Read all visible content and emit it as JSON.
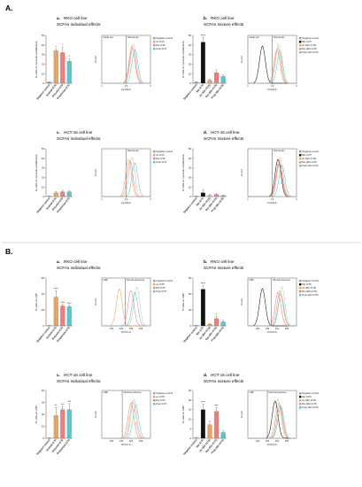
{
  "section_a": {
    "label": "A."
  },
  "section_b": {
    "label": "B."
  },
  "colors": {
    "negative": "#9e9e9e",
    "black": "#111111",
    "ac": "#f0a05a",
    "but": "#ee7f7f",
    "prop": "#5cc6c6"
  },
  "panels": [
    {
      "letter": "a.",
      "cell_line": "RKO cell line",
      "effects": "SCFAs individual effects",
      "ylabel": "% cells w/ cytosolic acidification"
    },
    {
      "letter": "b.",
      "cell_line": "RKO cell line",
      "effects": "SCFAs mixture effects",
      "ylabel": "% cells w/ cytosolic acidification"
    },
    {
      "letter": "c.",
      "cell_line": "HCT-15 cell line",
      "effects": "SCFAs individual effects",
      "ylabel": "% cells w/ cytosolic acidification"
    },
    {
      "letter": "d.",
      "cell_line": "HCT-15 cell line",
      "effects": "SCFAs mixture effects",
      "ylabel": "% cells w/ cytosolic acidification"
    },
    {
      "letter": "a.",
      "cell_line": "RKO cell line",
      "effects": "SCFAs individual effects",
      "ylabel": "% cells w/ LMP"
    },
    {
      "letter": "b.",
      "cell_line": "RKO cell line",
      "effects": "SCFAs mixture effects",
      "ylabel": "% cells w/ LMP"
    },
    {
      "letter": "c.",
      "cell_line": "HCT-15 cell line",
      "effects": "SCFAs individual effects",
      "ylabel": "% cells w/ LMP"
    },
    {
      "letter": "d.",
      "cell_line": "HCT-15 cell line",
      "effects": "SCFAs mixture effects",
      "ylabel": "% cells w/ LMP"
    }
  ],
  "chart_data": [
    {
      "type": "bar",
      "panel": "A a",
      "ylabel": "% cells w/ cytosolic acidification",
      "ylim": [
        0,
        50
      ],
      "yticks": [
        0,
        10,
        20,
        30,
        40,
        50
      ],
      "categories": [
        "Negative control",
        "Acetate IC75",
        "Butyrate IC75",
        "Propionate IC75"
      ],
      "values": [
        1,
        34,
        32,
        23
      ],
      "errors": [
        0.5,
        2,
        6,
        3
      ],
      "significance": [
        "",
        "*",
        "*",
        "*"
      ]
    },
    {
      "type": "line",
      "panel": "A a histogram",
      "xlabel": "FL1/FL2",
      "ylabel": "Count",
      "xlim": [
        1,
        2
      ],
      "xticks": [
        1,
        1.5,
        2
      ],
      "regions": [
        "Acidic pH",
        "Normal pH"
      ],
      "gate": 1.5,
      "legend": [
        "Negative control",
        "Ac IC75",
        "But IC75",
        "Prop IC75"
      ],
      "peaks": [
        1.65,
        1.62,
        1.63,
        1.68
      ]
    },
    {
      "type": "bar",
      "panel": "A b",
      "ylabel": "% cells w/ cytosolic acidification",
      "ylim": [
        0,
        50
      ],
      "yticks": [
        0,
        10,
        20,
        30,
        40,
        50
      ],
      "categories": [
        "Negative control",
        "Mix IC75",
        "Ac (Mix IC75)",
        "But (Mix IC75)",
        "Prop (Mix IC75)"
      ],
      "values": [
        1,
        43,
        3,
        11,
        7
      ],
      "errors": [
        0.5,
        5,
        1,
        3,
        2
      ],
      "significance": [
        "",
        "****",
        "",
        "",
        ""
      ]
    },
    {
      "type": "line",
      "panel": "A b histogram",
      "xlabel": "FL1/FL2",
      "ylabel": "Count",
      "xlim": [
        1,
        2
      ],
      "xticks": [
        1,
        1.5,
        2
      ],
      "regions": [
        "Acidic pH",
        "Normal pH"
      ],
      "gate": 1.5,
      "legend": [
        "Negative control",
        "Mix IC75",
        "Ac (Mix IC75)",
        "But (Mix IC75)",
        "Prop (Mix IC75)"
      ],
      "peaks": [
        1.63,
        1.3,
        1.62,
        1.6,
        1.66
      ]
    },
    {
      "type": "bar",
      "panel": "A c",
      "ylabel": "% cells w/ cytosolic acidification",
      "ylim": [
        0,
        50
      ],
      "yticks": [
        0,
        10,
        20,
        30,
        40,
        50
      ],
      "categories": [
        "Negative control",
        "Acetate IC75",
        "Butyrate IC75",
        "Propionate IC75"
      ],
      "values": [
        0,
        4,
        5,
        5
      ],
      "errors": [
        0.5,
        1,
        1.5,
        1
      ],
      "significance": [
        "",
        "",
        "",
        ""
      ]
    },
    {
      "type": "line",
      "panel": "A c histogram",
      "xlabel": "FL1/FL2",
      "ylabel": "Count",
      "xlim": [
        1,
        2
      ],
      "xticks": [
        1,
        1.5,
        2
      ],
      "regions": [
        "Normal pH"
      ],
      "gate": 1.5,
      "legend": [
        "Negative control",
        "Ac IC75",
        "But IC75",
        "Prop IC75"
      ],
      "peaks": [
        1.62,
        1.55,
        1.58,
        1.68
      ]
    },
    {
      "type": "bar",
      "panel": "A d",
      "ylabel": "% cells w/ cytosolic acidification",
      "ylim": [
        0,
        50
      ],
      "yticks": [
        0,
        10,
        20,
        30,
        40,
        50
      ],
      "categories": [
        "Negative control",
        "Mix IC75",
        "Ac (Mix IC75)",
        "But (Mix IC75)",
        "Prop (Mix IC75)"
      ],
      "values": [
        0,
        4,
        1,
        2,
        1
      ],
      "errors": [
        0.5,
        3,
        1,
        1,
        0.5
      ],
      "significance": [
        "",
        "",
        "",
        "",
        ""
      ]
    },
    {
      "type": "line",
      "panel": "A d histogram",
      "xlabel": "FL1/FL2",
      "ylabel": "Count",
      "xlim": [
        1,
        2
      ],
      "xticks": [
        1,
        1.5,
        2
      ],
      "regions": [
        "Normal pH"
      ],
      "gate": 1.5,
      "legend": [
        "Negative control",
        "Mix IC75",
        "Ac (Mix IC75)",
        "But (Mix IC75)",
        "Prop (Mix IC75)"
      ],
      "peaks": [
        1.66,
        1.62,
        1.64,
        1.65,
        1.7
      ]
    },
    {
      "type": "bar",
      "panel": "B a",
      "ylabel": "% cells w/ LMP",
      "ylim": [
        0,
        60
      ],
      "yticks": [
        0,
        20,
        40,
        60
      ],
      "categories": [
        "Negative control",
        "Acetate IC75",
        "Butyrate IC75",
        "Propionate IC75"
      ],
      "values": [
        0,
        36,
        25,
        24
      ],
      "errors": [
        0.5,
        8,
        2,
        2
      ],
      "significance": [
        "",
        "****",
        "****",
        "****"
      ]
    },
    {
      "type": "line",
      "panel": "B a histogram",
      "xlabel": "PC5.5-A",
      "ylabel": "Count",
      "xlim": [
        1,
        6
      ],
      "xticks": [
        "10^2",
        "10^3",
        "10^4",
        "10^5"
      ],
      "regions": [
        "LMP",
        "Normal lysosome"
      ],
      "gate": 3.4,
      "legend": [
        "Negative control",
        "Ac IC75",
        "But IC75",
        "Prop IC75"
      ],
      "peaks": [
        4.6,
        2.8,
        4.0,
        4.4
      ]
    },
    {
      "type": "bar",
      "panel": "B b",
      "ylabel": "% cells w/ LMP",
      "ylim": [
        0,
        60
      ],
      "yticks": [
        0,
        20,
        40,
        60
      ],
      "categories": [
        "Negative control",
        "Mix IC75",
        "Ac (Mix IC75)",
        "But (Mix IC75)",
        "Prop (Mix IC75)"
      ],
      "values": [
        0,
        46,
        2,
        9,
        5
      ],
      "errors": [
        0.5,
        5,
        1,
        3,
        2
      ],
      "significance": [
        "",
        "****",
        "",
        "*",
        ""
      ]
    },
    {
      "type": "line",
      "panel": "B b histogram",
      "xlabel": "PC5.5-A",
      "ylabel": "Count",
      "xlim": [
        1,
        6
      ],
      "xticks": [
        "10^2",
        "10^3",
        "10^4",
        "10^5"
      ],
      "regions": [
        "LMP",
        "Normal lysosome"
      ],
      "gate": 3.4,
      "legend": [
        "Negative control",
        "Mix IC75",
        "Ac (Mix IC75)",
        "But (Mix IC75)",
        "Prop (Mix IC75)"
      ],
      "peaks": [
        4.5,
        2.5,
        4.3,
        4.1,
        4.4
      ]
    },
    {
      "type": "bar",
      "panel": "B c",
      "ylabel": "% cells w/ LMP",
      "ylim": [
        0,
        40
      ],
      "yticks": [
        0,
        10,
        20,
        30,
        40
      ],
      "categories": [
        "Negative control",
        "Acetate IC75",
        "Butyrate IC75",
        "Propionate IC75"
      ],
      "values": [
        0,
        19,
        24,
        24
      ],
      "errors": [
        0.5,
        7,
        3,
        5
      ],
      "significance": [
        "",
        "**",
        "***",
        "***"
      ]
    },
    {
      "type": "line",
      "panel": "B c histogram",
      "xlabel": "PC5.5-A",
      "ylabel": "Count",
      "xlim": [
        1,
        6
      ],
      "xticks": [
        "10^2",
        "10^3",
        "10^4",
        "10^5"
      ],
      "regions": [
        "LMP",
        "Normal lysosome"
      ],
      "gate": 3.1,
      "legend": [
        "Negative control",
        "Ac IC75",
        "But IC75",
        "Prop IC75"
      ],
      "peaks": [
        4.3,
        4.2,
        4.0,
        4.5
      ]
    },
    {
      "type": "bar",
      "panel": "B d",
      "ylabel": "% cells w/ LMP",
      "ylim": [
        0,
        25
      ],
      "yticks": [
        0,
        5,
        10,
        15,
        20,
        25
      ],
      "categories": [
        "Negative control",
        "Mix IC75",
        "Ac (Mix IC75)",
        "But (Mix IC75)",
        "Prop (Mix IC75)"
      ],
      "values": [
        0,
        15,
        7,
        14,
        3
      ],
      "errors": [
        0.5,
        3,
        2,
        2,
        1
      ],
      "significance": [
        "",
        "****",
        "",
        "***",
        ""
      ]
    },
    {
      "type": "line",
      "panel": "B d histogram",
      "xlabel": "PC5.5-A",
      "ylabel": "Count",
      "xlim": [
        1,
        6
      ],
      "xticks": [
        "10^2",
        "10^3",
        "10^4",
        "10^5"
      ],
      "regions": [
        "LMP",
        "Normal lysosome"
      ],
      "gate": 3.0,
      "legend": [
        "Negative control",
        "Mix IC75",
        "Ac (Mix IC75)",
        "But (Mix IC75)",
        "Prop (Mix IC75)"
      ],
      "peaks": [
        4.1,
        3.8,
        4.2,
        4.3,
        4.4
      ]
    }
  ]
}
